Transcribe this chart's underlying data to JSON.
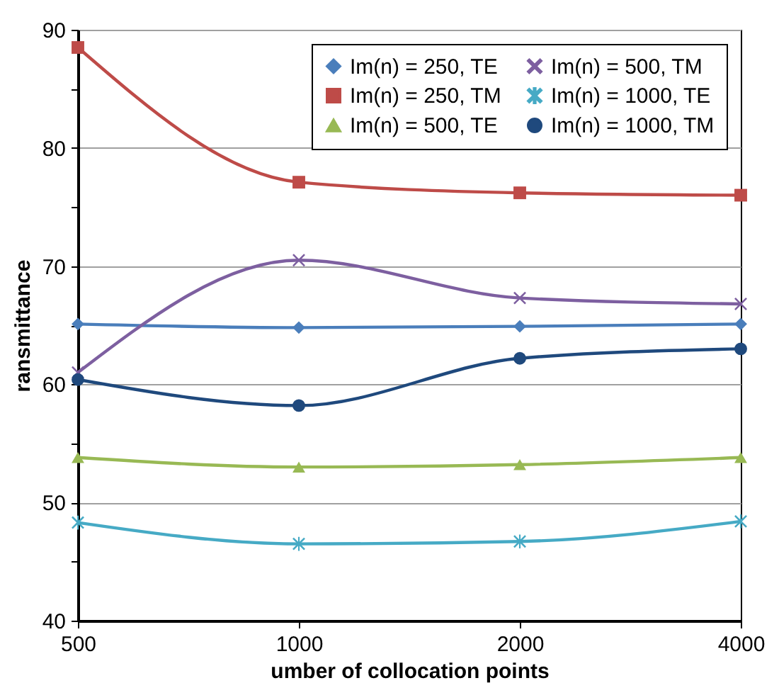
{
  "chart_data": {
    "type": "line",
    "xlabel": "umber of collocation points",
    "ylabel": "ransmittance",
    "categories": [
      "500",
      "1000",
      "2000",
      "4000"
    ],
    "series": [
      {
        "name": "Im(n) = 250, TE",
        "color": "#4a7ebb",
        "marker": "diamond",
        "values": [
          65.1,
          64.8,
          64.9,
          65.1
        ]
      },
      {
        "name": "Im(n) = 250, TM",
        "color": "#be4b48",
        "marker": "square",
        "values": [
          88.5,
          77.1,
          76.2,
          76.0
        ]
      },
      {
        "name": "Im(n) = 500, TE",
        "color": "#98b954",
        "marker": "triangle",
        "values": [
          53.8,
          53.0,
          53.2,
          53.8
        ]
      },
      {
        "name": "Im(n) = 500, TM",
        "color": "#7d5fa0",
        "marker": "cross",
        "values": [
          61.0,
          70.5,
          67.3,
          66.8
        ]
      },
      {
        "name": "Im(n) = 1000, TE",
        "color": "#46aac5",
        "marker": "star",
        "values": [
          48.3,
          46.5,
          46.7,
          48.4
        ]
      },
      {
        "name": "Im(n) = 1000, TM",
        "color": "#1f497d",
        "marker": "circle",
        "values": [
          60.4,
          58.2,
          62.2,
          63.0
        ]
      }
    ],
    "ylim": [
      40,
      90
    ],
    "yticks": [
      40,
      {
        "value": 45,
        "label": null
      },
      50,
      {
        "value": 55,
        "label": null
      },
      60,
      {
        "value": 65,
        "label": null
      },
      70,
      {
        "value": 75,
        "label": null
      },
      80,
      {
        "value": 85,
        "label": null
      },
      90
    ],
    "grid": "y",
    "legend": "top right",
    "line_style": "solid"
  }
}
